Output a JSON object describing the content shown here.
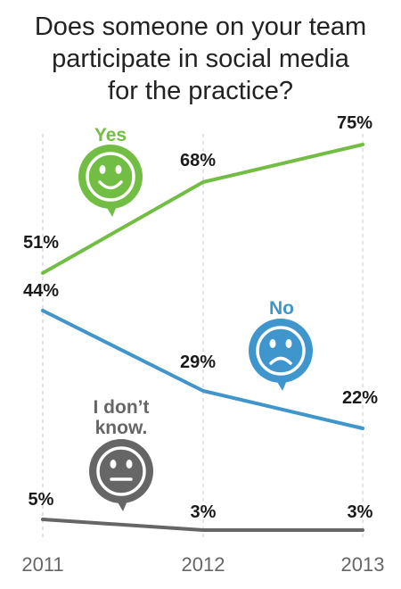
{
  "chart_data": {
    "type": "line",
    "title": "Does someone on your team\nparticipate in social media\nfor the practice?",
    "x": [
      "2011",
      "2012",
      "2013"
    ],
    "ylim": [
      0,
      80
    ],
    "grid": "vertical dashed lines",
    "series": [
      {
        "name": "Yes",
        "values": [
          51,
          68,
          75
        ],
        "labels": [
          "51%",
          "68%",
          "75%"
        ],
        "color": "#72be44",
        "icon": "smiley-face-icon"
      },
      {
        "name": "No",
        "values": [
          44,
          29,
          22
        ],
        "labels": [
          "44%",
          "29%",
          "22%"
        ],
        "color": "#3f96cc",
        "icon": "frowning-face-icon"
      },
      {
        "name": "I don’t\nknow.",
        "values": [
          5,
          3,
          3
        ],
        "labels": [
          "5%",
          "3%",
          "3%"
        ],
        "color": "#666666",
        "icon": "neutral-face-icon"
      }
    ]
  }
}
